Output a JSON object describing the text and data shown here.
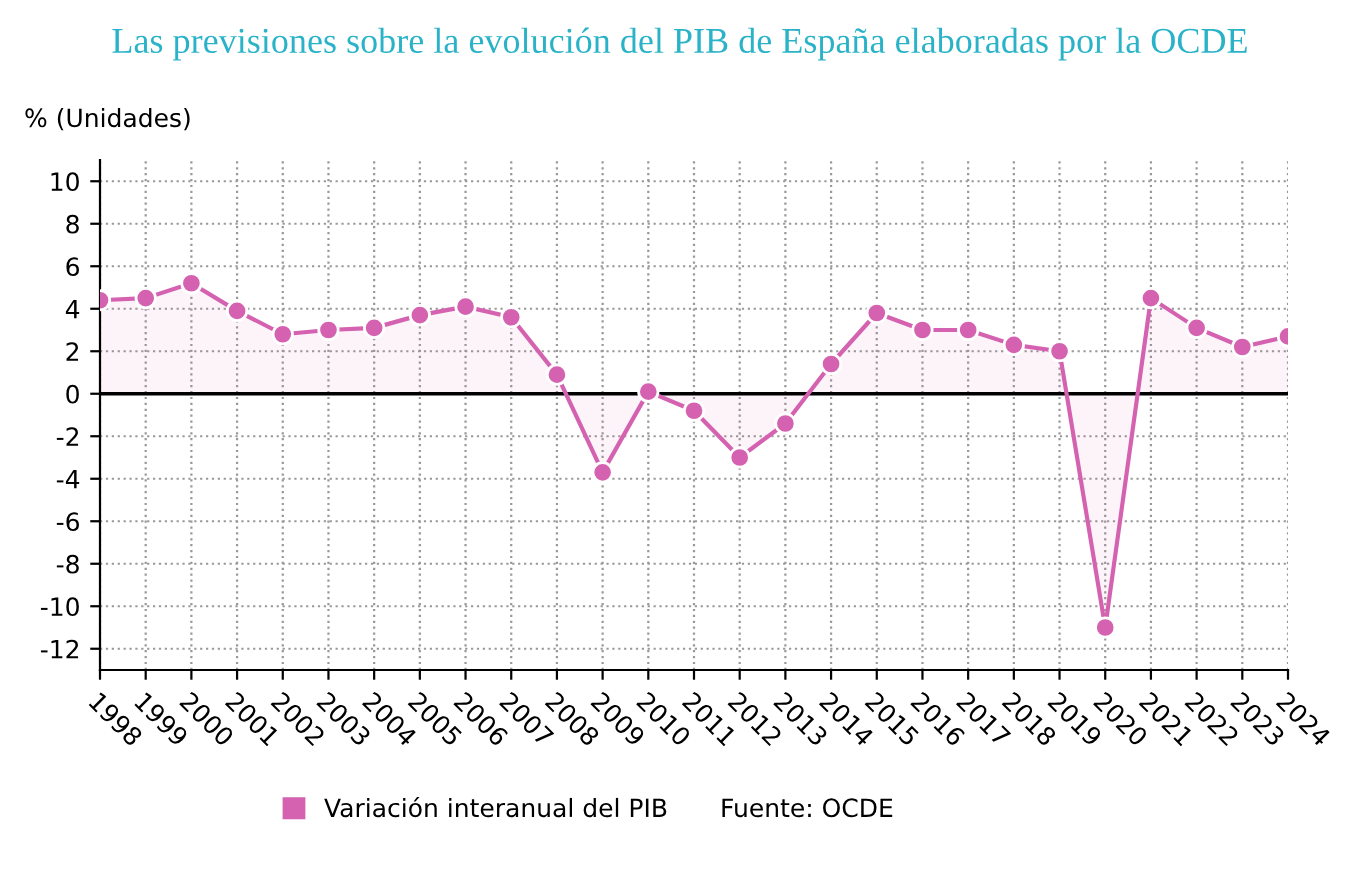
{
  "chart_data": {
    "type": "line",
    "title": "Las previsiones sobre la evolución del PIB de España elaboradas por la OCDE",
    "ylabel": "% (Unidades)",
    "categories": [
      "1998",
      "1999",
      "2000",
      "2001",
      "2002",
      "2003",
      "2004",
      "2005",
      "2006",
      "2007",
      "2008",
      "2009",
      "2010",
      "2011",
      "2012",
      "2013",
      "2014",
      "2015",
      "2016",
      "2017",
      "2018",
      "2019",
      "2020",
      "2021",
      "2022",
      "2023",
      "2024"
    ],
    "series": [
      {
        "name": "Variación interanual del PIB",
        "color": "#d462b0",
        "values": [
          4.4,
          4.5,
          5.2,
          3.9,
          2.8,
          3.0,
          3.1,
          3.7,
          4.1,
          3.6,
          0.9,
          -3.7,
          0.1,
          -0.8,
          -3.0,
          -1.4,
          1.4,
          3.8,
          3.0,
          3.0,
          2.3,
          2.0,
          -11.0,
          4.5,
          3.1,
          2.2,
          2.7
        ]
      }
    ],
    "ylim": [
      -13,
      11
    ],
    "yticks": [
      -12,
      -10,
      -8,
      -6,
      -4,
      -2,
      0,
      2,
      4,
      6,
      8,
      10
    ],
    "ref_lines": [
      {
        "axis": "y",
        "value": 0,
        "color": "#000000"
      }
    ],
    "grid": true,
    "marker": "circle",
    "line_style": "solid",
    "legend": "bottom",
    "annotations": [
      "Fuente: OCDE"
    ]
  }
}
